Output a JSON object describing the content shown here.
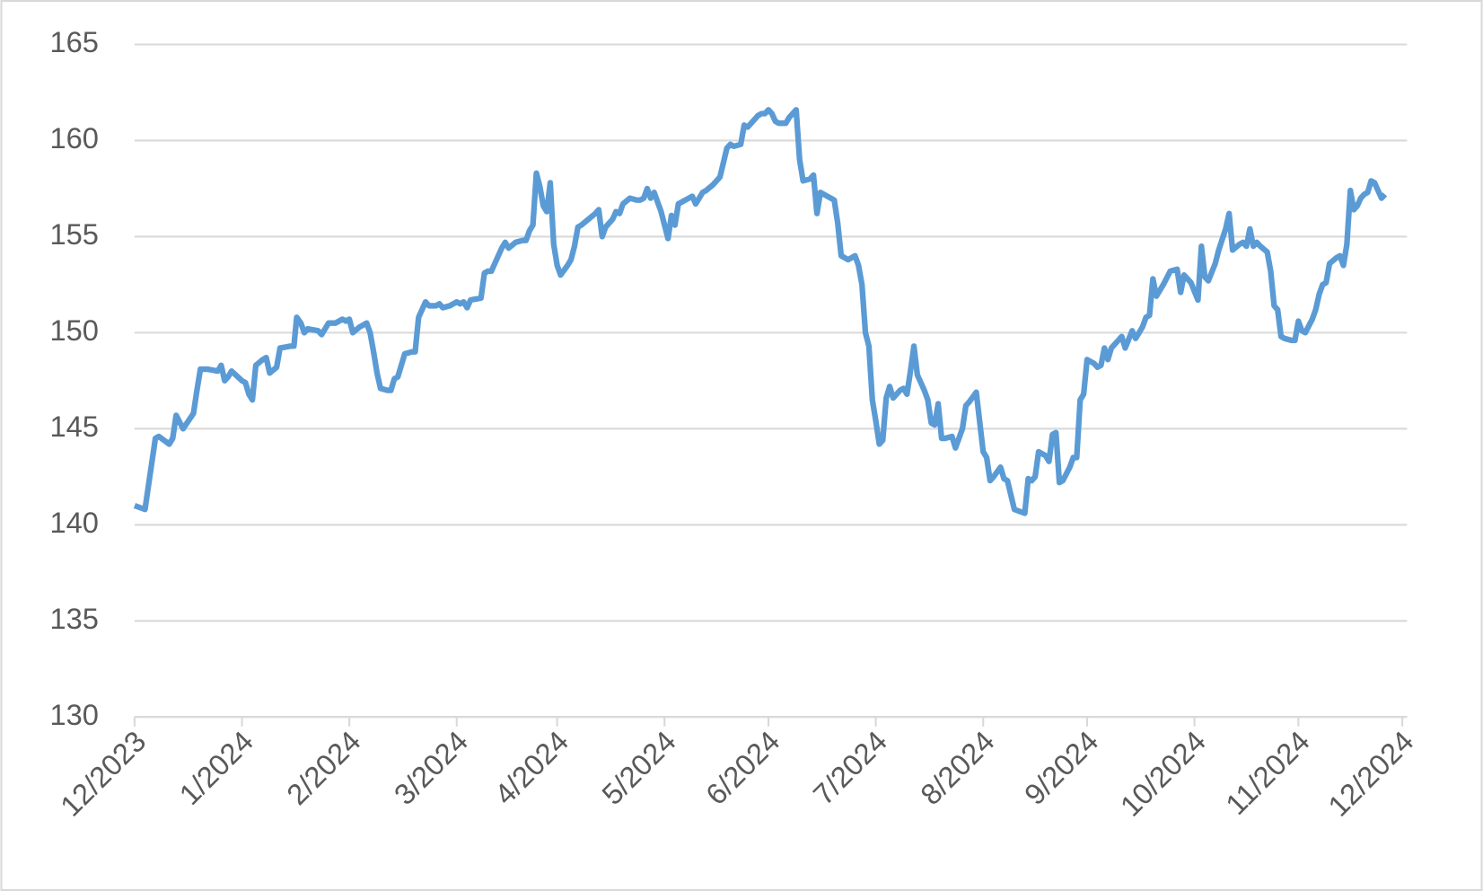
{
  "chart_data": {
    "type": "line",
    "x": [
      0,
      3,
      6,
      7,
      10,
      11,
      12,
      14,
      17,
      18,
      19,
      21,
      24,
      25,
      26,
      27,
      28,
      31,
      32,
      33,
      34,
      35,
      37,
      38,
      39,
      41,
      42,
      45,
      46,
      46.8,
      48,
      49,
      50,
      53,
      54,
      55,
      56,
      58,
      60,
      61,
      62,
      63,
      65,
      66,
      67,
      68,
      69,
      70,
      71,
      73,
      74,
      75,
      76,
      78,
      80,
      81,
      82,
      83,
      84,
      85,
      87,
      88,
      89,
      91,
      93,
      94,
      95,
      96,
      97,
      100,
      101,
      102,
      103,
      104,
      106,
      107,
      108,
      110,
      112,
      113,
      114,
      115,
      116,
      117,
      118,
      119,
      120,
      121,
      122,
      123,
      125,
      126,
      127,
      128,
      129,
      131,
      133,
      134,
      135,
      136,
      138,
      139,
      140,
      141,
      143,
      145,
      146,
      147,
      148,
      149,
      150,
      151,
      152,
      153,
      154,
      155,
      156,
      157,
      159,
      161,
      162,
      164,
      165,
      167,
      169,
      171,
      172,
      173,
      175,
      176,
      177,
      180,
      181,
      182,
      183,
      184,
      185,
      186,
      188,
      189,
      191,
      192,
      193,
      195,
      196,
      197,
      198,
      199,
      202,
      203,
      204,
      206,
      208,
      209,
      210,
      211,
      212,
      213,
      214,
      215,
      216,
      217,
      218,
      219,
      220,
      221,
      222,
      223,
      224,
      225,
      226,
      227,
      228,
      229,
      230,
      231,
      232,
      233,
      234,
      236,
      237,
      238,
      239,
      240,
      241,
      243,
      245,
      246,
      247,
      248,
      250,
      251,
      252,
      254,
      257,
      258,
      259,
      260,
      261,
      263,
      264,
      265,
      266,
      267,
      268,
      270,
      271,
      272,
      273,
      274,
      275,
      277,
      278,
      279,
      280,
      281,
      282,
      284,
      285,
      286,
      288,
      289,
      291,
      292,
      293,
      294,
      295,
      297,
      299,
      301,
      302,
      303,
      305,
      307,
      308,
      309,
      310,
      312,
      313,
      315,
      316,
      317,
      319,
      320,
      321,
      322,
      323,
      324,
      325,
      327,
      328,
      329,
      330,
      331,
      332,
      334,
      335,
      336,
      337,
      338,
      340,
      341,
      342,
      343,
      344,
      345,
      347,
      348,
      349,
      350,
      351,
      352,
      353,
      354,
      355,
      356,
      357,
      358,
      360,
      361
    ],
    "series": [
      {
        "color": "#5b9bd5",
        "values": [
          141.0,
          140.8,
          144.5,
          144.6,
          144.2,
          144.5,
          145.7,
          145.0,
          145.8,
          147.0,
          148.1,
          148.1,
          148.0,
          148.3,
          147.5,
          147.7,
          148.0,
          147.5,
          147.4,
          146.8,
          146.5,
          148.3,
          148.6,
          148.7,
          147.9,
          148.2,
          149.2,
          149.3,
          149.3,
          150.8,
          150.5,
          150.0,
          150.2,
          150.1,
          149.9,
          150.2,
          150.5,
          150.5,
          150.7,
          150.6,
          150.7,
          150.0,
          150.3,
          150.4,
          150.5,
          150.0,
          149.0,
          147.9,
          147.1,
          147.0,
          147.0,
          147.6,
          147.7,
          148.9,
          149.0,
          149.0,
          150.8,
          151.2,
          151.6,
          151.4,
          151.4,
          151.5,
          151.3,
          151.4,
          151.6,
          151.5,
          151.6,
          151.3,
          151.7,
          151.8,
          153.1,
          153.2,
          153.2,
          153.6,
          154.4,
          154.7,
          154.4,
          154.7,
          154.8,
          154.8,
          155.3,
          155.6,
          158.3,
          157.6,
          156.6,
          156.3,
          157.8,
          154.6,
          153.5,
          153.0,
          153.5,
          153.8,
          154.5,
          155.5,
          155.6,
          155.9,
          156.2,
          156.4,
          155.0,
          155.5,
          155.9,
          156.3,
          156.2,
          156.7,
          157.0,
          156.9,
          156.9,
          157.0,
          157.5,
          157.0,
          157.3,
          156.8,
          156.3,
          155.6,
          154.9,
          156.1,
          155.6,
          156.7,
          156.9,
          157.1,
          156.7,
          157.3,
          157.4,
          157.7,
          158.1,
          159.6,
          159.8,
          159.7,
          159.8,
          160.8,
          160.7,
          161.3,
          161.4,
          161.4,
          161.6,
          161.4,
          161.0,
          160.9,
          160.9,
          161.2,
          161.6,
          159.0,
          157.9,
          158.0,
          158.2,
          156.2,
          157.3,
          157.2,
          156.9,
          155.7,
          154.0,
          153.8,
          154.0,
          153.5,
          152.5,
          150.0,
          149.3,
          146.5,
          145.4,
          144.2,
          144.4,
          146.6,
          147.2,
          146.6,
          146.8,
          147.0,
          147.1,
          146.8,
          148.0,
          149.3,
          147.8,
          147.4,
          147.0,
          146.5,
          145.3,
          145.2,
          146.3,
          144.5,
          144.5,
          144.6,
          144.0,
          144.5,
          145.0,
          146.2,
          146.4,
          146.9,
          143.8,
          143.5,
          142.3,
          142.5,
          143.0,
          142.4,
          142.3,
          140.8,
          140.6,
          142.4,
          142.3,
          142.5,
          143.8,
          143.6,
          143.3,
          144.7,
          144.8,
          142.2,
          142.3,
          143.0,
          143.5,
          143.5,
          146.5,
          146.8,
          148.6,
          148.4,
          148.2,
          148.3,
          149.2,
          148.6,
          149.2,
          149.6,
          149.8,
          149.2,
          150.1,
          149.7,
          150.3,
          150.8,
          150.9,
          152.8,
          151.9,
          152.5,
          153.2,
          153.3,
          152.1,
          153.0,
          152.6,
          151.7,
          154.5,
          152.9,
          152.7,
          153.6,
          154.3,
          155.4,
          156.2,
          154.3,
          154.6,
          154.7,
          154.5,
          155.4,
          154.5,
          154.7,
          154.5,
          154.2,
          153.2,
          151.4,
          151.2,
          149.8,
          149.7,
          149.6,
          149.6,
          150.6,
          150.1,
          150.0,
          150.7,
          151.2,
          152.0,
          152.5,
          152.6,
          153.6,
          153.9,
          154.0,
          153.5,
          154.6,
          157.4,
          156.4,
          156.6,
          157.0,
          157.2,
          157.3,
          157.9,
          157.8,
          157.0,
          157.2
        ]
      }
    ],
    "xlim": [
      0,
      366
    ],
    "xticks": [
      {
        "value": 0,
        "label": "12/2023"
      },
      {
        "value": 31,
        "label": "1/2024"
      },
      {
        "value": 62,
        "label": "2/2024"
      },
      {
        "value": 93,
        "label": "3/2024"
      },
      {
        "value": 122,
        "label": "4/2024"
      },
      {
        "value": 153,
        "label": "5/2024"
      },
      {
        "value": 183,
        "label": "6/2024"
      },
      {
        "value": 214,
        "label": "7/2024"
      },
      {
        "value": 245,
        "label": "8/2024"
      },
      {
        "value": 275,
        "label": "9/2024"
      },
      {
        "value": 306,
        "label": "10/2024"
      },
      {
        "value": 336,
        "label": "11/2024"
      },
      {
        "value": 366,
        "label": "12/2024"
      }
    ],
    "ylim": [
      130,
      165
    ],
    "yticks": [
      130,
      135,
      140,
      145,
      150,
      155,
      160,
      165
    ],
    "grid": true
  }
}
